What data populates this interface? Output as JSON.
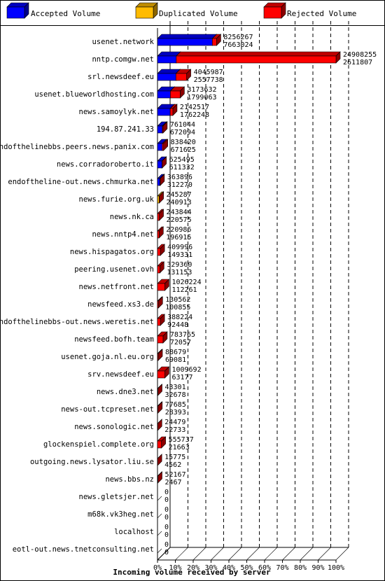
{
  "colors": {
    "accepted": "#0000ff",
    "duplicated": "#ffbb00",
    "rejected": "#ff0000",
    "grid": "#000000",
    "background": "#ffffff"
  },
  "chart_data": {
    "type": "bar",
    "orientation": "horizontal",
    "stacked": true,
    "style": "3d",
    "xlabel": "Incoming volume received by server",
    "xlim": [
      0,
      100
    ],
    "x_tick_labels": [
      "0%",
      "10%",
      "20%",
      "30%",
      "40%",
      "50%",
      "60%",
      "70%",
      "80%",
      "90%",
      "100%"
    ],
    "legend": {
      "placement": "top",
      "entries": [
        "Accepted Volume",
        "Duplicated Volume",
        "Rejected Volume"
      ]
    },
    "rows": [
      {
        "server": "usenet.network",
        "total": "8256267",
        "accepted_value": "7663024",
        "accepted_pct": 30.7,
        "duplicated_pct": 0,
        "rejected_pct": 2.4
      },
      {
        "server": "nntp.comgw.net",
        "total": "24908255",
        "accepted_value": "2611807",
        "accepted_pct": 10.5,
        "duplicated_pct": 0,
        "rejected_pct": 89.5
      },
      {
        "server": "srl.newsdeef.eu",
        "total": "4045987",
        "accepted_value": "2557738",
        "accepted_pct": 10.3,
        "duplicated_pct": 0,
        "rejected_pct": 6.0
      },
      {
        "server": "usenet.blueworldhosting.com",
        "total": "3173632",
        "accepted_value": "1799063",
        "accepted_pct": 7.2,
        "duplicated_pct": 0,
        "rejected_pct": 5.5
      },
      {
        "server": "news.samoylyk.net",
        "total": "2142517",
        "accepted_value": "1762248",
        "accepted_pct": 7.1,
        "duplicated_pct": 0,
        "rejected_pct": 1.5
      },
      {
        "server": "194.87.241.33",
        "total": "761044",
        "accepted_value": "672094",
        "accepted_pct": 2.7,
        "duplicated_pct": 0,
        "rejected_pct": 0.4
      },
      {
        "server": "endofthelinebbs.peers.news.panix.com",
        "total": "838420",
        "accepted_value": "671625",
        "accepted_pct": 2.7,
        "duplicated_pct": 0,
        "rejected_pct": 0.7
      },
      {
        "server": "news.corradoroberto.it",
        "total": "625495",
        "accepted_value": "611332",
        "accepted_pct": 2.5,
        "duplicated_pct": 0,
        "rejected_pct": 0.1
      },
      {
        "server": "endoftheline-out.news.chmurka.net",
        "total": "363896",
        "accepted_value": "312270",
        "accepted_pct": 1.3,
        "duplicated_pct": 0,
        "rejected_pct": 0.2
      },
      {
        "server": "news.furie.org.uk",
        "total": "245287",
        "accepted_value": "240913",
        "accepted_pct": 0,
        "duplicated_pct": 0.97,
        "rejected_pct": 0.02
      },
      {
        "server": "news.nk.ca",
        "total": "243844",
        "accepted_value": "220575",
        "accepted_pct": 0,
        "duplicated_pct": 0,
        "rejected_pct": 1.0
      },
      {
        "server": "news.nntp4.net",
        "total": "220986",
        "accepted_value": "196915",
        "accepted_pct": 0,
        "duplicated_pct": 0,
        "rejected_pct": 0.9
      },
      {
        "server": "news.hispagatos.org",
        "total": "409996",
        "accepted_value": "149331",
        "accepted_pct": 0,
        "duplicated_pct": 0,
        "rejected_pct": 1.6
      },
      {
        "server": "peering.usenet.ovh",
        "total": "329360",
        "accepted_value": "131153",
        "accepted_pct": 0,
        "duplicated_pct": 0,
        "rejected_pct": 1.3
      },
      {
        "server": "news.netfront.net",
        "total": "1026224",
        "accepted_value": "112261",
        "accepted_pct": 0,
        "duplicated_pct": 0,
        "rejected_pct": 4.1
      },
      {
        "server": "newsfeed.xs3.de",
        "total": "130562",
        "accepted_value": "100855",
        "accepted_pct": 0,
        "duplicated_pct": 0,
        "rejected_pct": 0.5
      },
      {
        "server": "endofthelinebbs-out.news.weretis.net",
        "total": "388224",
        "accepted_value": "92448",
        "accepted_pct": 0,
        "duplicated_pct": 0,
        "rejected_pct": 1.6
      },
      {
        "server": "newsfeed.bofh.team",
        "total": "783765",
        "accepted_value": "72057",
        "accepted_pct": 0,
        "duplicated_pct": 0,
        "rejected_pct": 3.1
      },
      {
        "server": "usenet.goja.nl.eu.org",
        "total": "88679",
        "accepted_value": "69081",
        "accepted_pct": 0,
        "duplicated_pct": 0,
        "rejected_pct": 0.4
      },
      {
        "server": "srv.newsdeef.eu",
        "total": "1009692",
        "accepted_value": "63177",
        "accepted_pct": 0,
        "duplicated_pct": 0,
        "rejected_pct": 4.1
      },
      {
        "server": "news.dne3.net",
        "total": "43301",
        "accepted_value": "32678",
        "accepted_pct": 0,
        "duplicated_pct": 0,
        "rejected_pct": 0.2
      },
      {
        "server": "news-out.tcpreset.net",
        "total": "77685",
        "accepted_value": "28393",
        "accepted_pct": 0,
        "duplicated_pct": 0,
        "rejected_pct": 0.3
      },
      {
        "server": "news.sonologic.net",
        "total": "24479",
        "accepted_value": "22733",
        "accepted_pct": 0,
        "duplicated_pct": 0,
        "rejected_pct": 0.1
      },
      {
        "server": "glockenspiel.complete.org",
        "total": "555737",
        "accepted_value": "21663",
        "accepted_pct": 0,
        "duplicated_pct": 0,
        "rejected_pct": 2.2
      },
      {
        "server": "outgoing.news.lysator.liu.se",
        "total": "15775",
        "accepted_value": "4562",
        "accepted_pct": 0,
        "duplicated_pct": 0,
        "rejected_pct": 0.06
      },
      {
        "server": "news.bbs.nz",
        "total": "52167",
        "accepted_value": "2467",
        "accepted_pct": 0,
        "duplicated_pct": 0,
        "rejected_pct": 0.2
      },
      {
        "server": "news.gletsjer.net",
        "total": "0",
        "accepted_value": "0",
        "accepted_pct": 0,
        "duplicated_pct": 0,
        "rejected_pct": 0
      },
      {
        "server": "m68k.vk3heg.net",
        "total": "0",
        "accepted_value": "0",
        "accepted_pct": 0,
        "duplicated_pct": 0,
        "rejected_pct": 0
      },
      {
        "server": "localhost",
        "total": "0",
        "accepted_value": "0",
        "accepted_pct": 0,
        "duplicated_pct": 0,
        "rejected_pct": 0
      },
      {
        "server": "eotl-out.news.tnetconsulting.net",
        "total": "0",
        "accepted_value": "0",
        "accepted_pct": 0,
        "duplicated_pct": 0,
        "rejected_pct": 0
      }
    ]
  }
}
